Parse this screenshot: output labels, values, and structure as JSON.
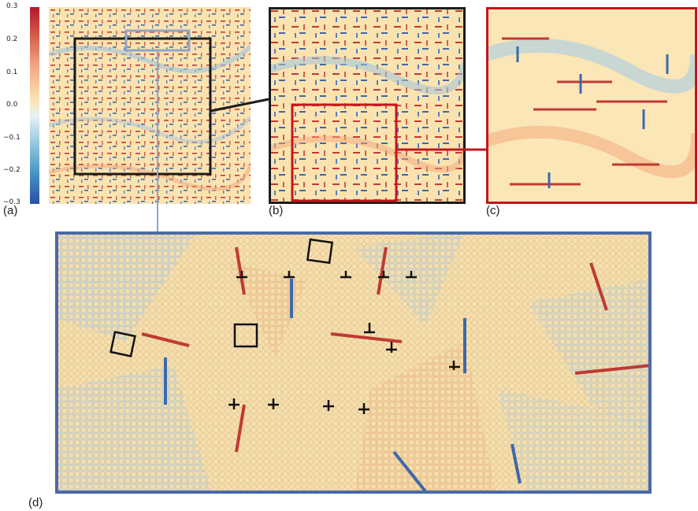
{
  "colorbar": {
    "ticks": [
      "0.3",
      "0.2",
      "0.1",
      "0.0",
      "−0.1",
      "−0.2",
      "−0.3"
    ],
    "colors": [
      "#b2182b",
      "#d6604d",
      "#f4a582",
      "#fbe6b8",
      "#d1e5f0",
      "#92c5de",
      "#4393c3",
      "#2c4ea8"
    ]
  },
  "panels": {
    "a": {
      "label": "(a)"
    },
    "b": {
      "label": "(b)"
    },
    "c": {
      "label": "(c)"
    },
    "d": {
      "label": "(d)"
    }
  },
  "colors": {
    "box_a": "#1b1b1b",
    "box_b": "#c4161c",
    "box_c": "#c4161c",
    "box_d": "#4a6aa8",
    "connector_gray": "#8ea6c8",
    "background_field": "#fbe6b8"
  }
}
